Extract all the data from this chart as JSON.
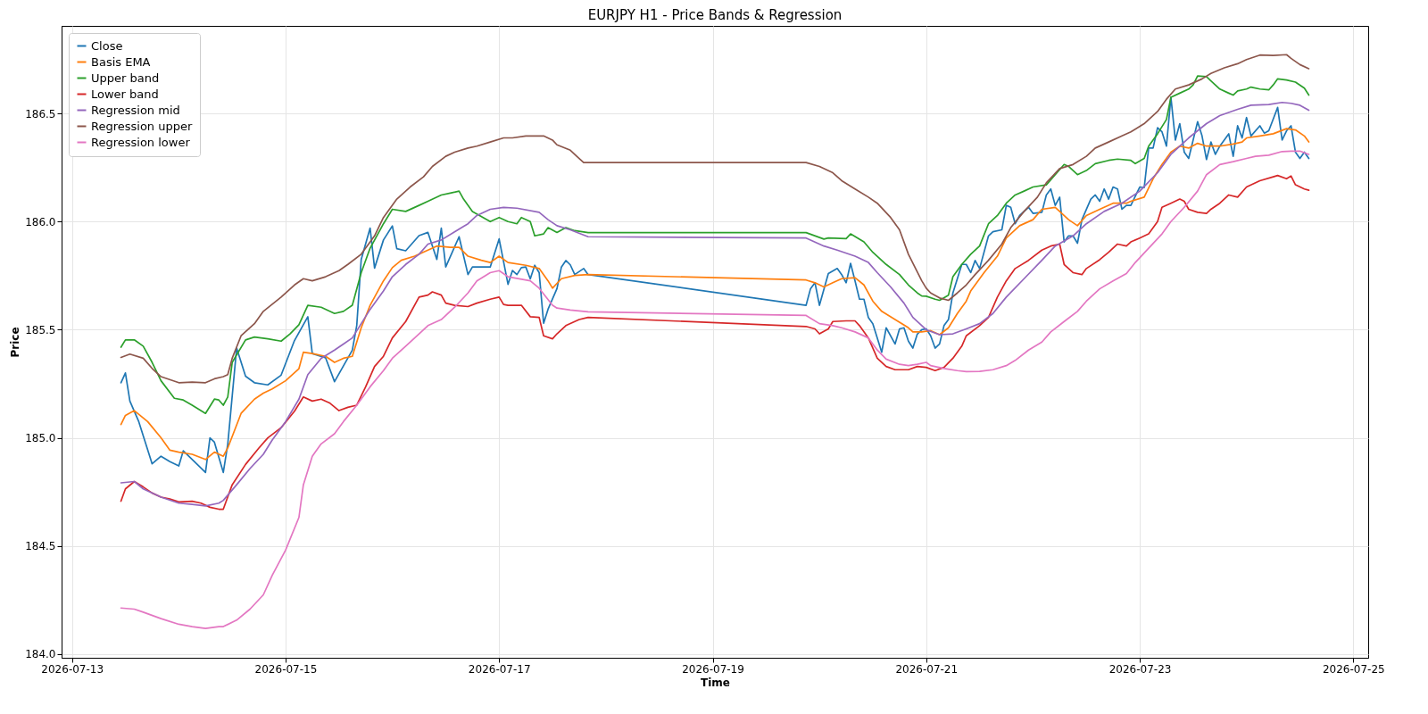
{
  "chart_data": {
    "type": "line",
    "title": "EURJPY H1 - Price Bands & Regression",
    "xlabel": "Time",
    "ylabel": "Price",
    "xlim": [
      "2026-07-12T21:39",
      "2026-07-25T03:21"
    ],
    "xticks": [
      "2026-07-13",
      "2026-07-15",
      "2026-07-17",
      "2026-07-19",
      "2026-07-21",
      "2026-07-23",
      "2026-07-25"
    ],
    "ylim": [
      183.983,
      186.905
    ],
    "yticks": [
      {
        "value": 184,
        "label": "184.0"
      },
      {
        "value": 184.5,
        "label": "184.5"
      },
      {
        "value": 185,
        "label": "185.0"
      },
      {
        "value": 185.5,
        "label": "185.5"
      },
      {
        "value": 186,
        "label": "186.0"
      },
      {
        "value": 186.5,
        "label": "186.5"
      }
    ],
    "grid": true,
    "legend": "top left",
    "series": [
      {
        "name": "Close",
        "color": "#1f77b4",
        "x": [
          "2026-07-13T11:00",
          "2026-07-13T12:00",
          "2026-07-13T13:00",
          "2026-07-13T15:00",
          "2026-07-13T16:00",
          "2026-07-13T18:00",
          "2026-07-13T20:00",
          "2026-07-13T22:00",
          "2026-07-14T00:00",
          "2026-07-14T01:00",
          "2026-07-14T04:00",
          "2026-07-14T06:00",
          "2026-07-14T07:00",
          "2026-07-14T08:00",
          "2026-07-14T10:00",
          "2026-07-14T11:00",
          "2026-07-14T13:00",
          "2026-07-14T15:00",
          "2026-07-14T17:00",
          "2026-07-14T20:00",
          "2026-07-14T23:00",
          "2026-07-15T02:00",
          "2026-07-15T05:00",
          "2026-07-15T06:00",
          "2026-07-15T09:00",
          "2026-07-15T11:00",
          "2026-07-15T15:00",
          "2026-07-15T16:00",
          "2026-07-15T17:00",
          "2026-07-15T19:00",
          "2026-07-15T20:00",
          "2026-07-15T22:00",
          "2026-07-16T00:00",
          "2026-07-16T01:00",
          "2026-07-16T03:00",
          "2026-07-16T06:00",
          "2026-07-16T08:00",
          "2026-07-16T10:00",
          "2026-07-16T11:00",
          "2026-07-16T12:00",
          "2026-07-16T15:00",
          "2026-07-16T17:00",
          "2026-07-16T18:00",
          "2026-07-16T22:00",
          "2026-07-17T00:00",
          "2026-07-17T02:00",
          "2026-07-17T03:00",
          "2026-07-17T04:00",
          "2026-07-17T05:00",
          "2026-07-17T06:00",
          "2026-07-17T07:00",
          "2026-07-17T08:00",
          "2026-07-17T09:00",
          "2026-07-17T10:00",
          "2026-07-17T11:00",
          "2026-07-17T13:00",
          "2026-07-17T14:00",
          "2026-07-17T15:00",
          "2026-07-17T16:00",
          "2026-07-17T17:00",
          "2026-07-17T19:00",
          "2026-07-17T20:00",
          "2026-07-19T21:00",
          "2026-07-19T22:00",
          "2026-07-19T23:00",
          "2026-07-20T00:00",
          "2026-07-20T02:00",
          "2026-07-20T04:00",
          "2026-07-20T05:00",
          "2026-07-20T06:00",
          "2026-07-20T07:00",
          "2026-07-20T08:00",
          "2026-07-20T09:00",
          "2026-07-20T10:00",
          "2026-07-20T11:00",
          "2026-07-20T12:00",
          "2026-07-20T14:00",
          "2026-07-20T15:00",
          "2026-07-20T17:00",
          "2026-07-20T18:00",
          "2026-07-20T19:00",
          "2026-07-20T20:00",
          "2026-07-20T21:00",
          "2026-07-20T22:00",
          "2026-07-20T23:00",
          "2026-07-21T00:00",
          "2026-07-21T01:00",
          "2026-07-21T02:00",
          "2026-07-21T03:00",
          "2026-07-21T04:00",
          "2026-07-21T05:00",
          "2026-07-21T06:00",
          "2026-07-21T08:00",
          "2026-07-21T09:00",
          "2026-07-21T10:00",
          "2026-07-21T11:00",
          "2026-07-21T12:00",
          "2026-07-21T14:00",
          "2026-07-21T15:00",
          "2026-07-21T17:00",
          "2026-07-21T18:00",
          "2026-07-21T19:00",
          "2026-07-21T20:00",
          "2026-07-21T21:00",
          "2026-07-21T23:00",
          "2026-07-22T00:00",
          "2026-07-22T02:00",
          "2026-07-22T03:00",
          "2026-07-22T04:00",
          "2026-07-22T05:00",
          "2026-07-22T06:00",
          "2026-07-22T07:00",
          "2026-07-22T08:00",
          "2026-07-22T09:00",
          "2026-07-22T10:00",
          "2026-07-22T11:00",
          "2026-07-22T13:00",
          "2026-07-22T14:00",
          "2026-07-22T15:00",
          "2026-07-22T16:00",
          "2026-07-22T17:00",
          "2026-07-22T18:00",
          "2026-07-22T19:00",
          "2026-07-22T20:00",
          "2026-07-22T21:00",
          "2026-07-22T22:00",
          "2026-07-23T00:00",
          "2026-07-23T01:00",
          "2026-07-23T02:00",
          "2026-07-23T03:00",
          "2026-07-23T04:00",
          "2026-07-23T05:00",
          "2026-07-23T06:00",
          "2026-07-23T07:00",
          "2026-07-23T08:00",
          "2026-07-23T09:00",
          "2026-07-23T10:00",
          "2026-07-23T11:00",
          "2026-07-23T13:00",
          "2026-07-23T14:00",
          "2026-07-23T15:00",
          "2026-07-23T16:00",
          "2026-07-23T17:00",
          "2026-07-23T18:00",
          "2026-07-23T20:00",
          "2026-07-23T21:00",
          "2026-07-23T22:00",
          "2026-07-23T23:00",
          "2026-07-24T00:00",
          "2026-07-24T01:00",
          "2026-07-24T03:00",
          "2026-07-24T04:00",
          "2026-07-24T05:00",
          "2026-07-24T07:00",
          "2026-07-24T08:00",
          "2026-07-24T09:00",
          "2026-07-24T10:00",
          "2026-07-24T11:00",
          "2026-07-24T12:00",
          "2026-07-24T13:00",
          "2026-07-24T14:00"
        ],
        "values": [
          185.255,
          185.3,
          185.17,
          185.075,
          185.01,
          184.88,
          184.915,
          184.89,
          184.87,
          184.94,
          184.88,
          184.84,
          185.0,
          184.98,
          184.84,
          184.97,
          185.415,
          185.285,
          185.255,
          185.245,
          185.29,
          185.45,
          185.56,
          185.39,
          185.37,
          185.26,
          185.405,
          185.52,
          185.825,
          185.97,
          185.785,
          185.915,
          185.98,
          185.875,
          185.865,
          185.935,
          185.95,
          185.825,
          185.97,
          185.79,
          185.93,
          185.755,
          185.79,
          185.79,
          185.92,
          185.71,
          185.774,
          185.755,
          185.787,
          185.79,
          185.735,
          185.798,
          185.764,
          185.53,
          185.595,
          185.69,
          185.79,
          185.82,
          185.8,
          185.755,
          185.783,
          185.755,
          185.613,
          185.69,
          185.717,
          185.613,
          185.76,
          185.783,
          185.755,
          185.717,
          185.807,
          185.726,
          185.641,
          185.641,
          185.556,
          185.528,
          185.396,
          185.509,
          185.434,
          185.504,
          185.509,
          185.447,
          185.415,
          185.48,
          185.5,
          185.504,
          185.472,
          185.415,
          185.434,
          185.519,
          185.547,
          185.67,
          185.802,
          185.802,
          185.764,
          185.82,
          185.783,
          185.934,
          185.953,
          185.962,
          186.075,
          186.066,
          185.99,
          186.028,
          186.066,
          186.038,
          186.043,
          186.123,
          186.151,
          186.075,
          186.113,
          185.906,
          185.934,
          185.934,
          185.9,
          186.009,
          186.104,
          186.123,
          186.094,
          186.151,
          186.104,
          186.16,
          186.151,
          186.057,
          186.075,
          186.075,
          186.16,
          186.157,
          186.34,
          186.34,
          186.434,
          186.415,
          186.349,
          186.575,
          186.377,
          186.453,
          186.321,
          186.292,
          186.462,
          186.396,
          186.287,
          186.368,
          186.311,
          186.349,
          186.406,
          186.302,
          186.443,
          186.387,
          186.481,
          186.396,
          186.443,
          186.409,
          186.42,
          186.528,
          186.377,
          186.42,
          186.443,
          186.321,
          186.292,
          186.321,
          186.292
        ]
      },
      {
        "name": "Basis EMA",
        "color": "#ff7f0e",
        "x": [
          "2026-07-13T11:00",
          "2026-07-13T12:00",
          "2026-07-13T14:00",
          "2026-07-13T17:00",
          "2026-07-13T20:00",
          "2026-07-13T22:00",
          "2026-07-14T00:00",
          "2026-07-14T03:00",
          "2026-07-14T06:00",
          "2026-07-14T08:00",
          "2026-07-14T10:00",
          "2026-07-14T11:00",
          "2026-07-14T14:00",
          "2026-07-14T17:00",
          "2026-07-14T19:00",
          "2026-07-14T21:00",
          "2026-07-15T00:00",
          "2026-07-15T03:00",
          "2026-07-15T04:00",
          "2026-07-15T06:00",
          "2026-07-15T09:00",
          "2026-07-15T11:00",
          "2026-07-15T13:00",
          "2026-07-15T15:00",
          "2026-07-15T17:00",
          "2026-07-15T19:00",
          "2026-07-15T22:00",
          "2026-07-16T00:00",
          "2026-07-16T02:00",
          "2026-07-16T05:00",
          "2026-07-16T08:00",
          "2026-07-16T10:00",
          "2026-07-16T13:00",
          "2026-07-16T15:00",
          "2026-07-16T17:00",
          "2026-07-16T20:00",
          "2026-07-16T22:00",
          "2026-07-17T00:00",
          "2026-07-17T02:00",
          "2026-07-17T06:00",
          "2026-07-17T09:00",
          "2026-07-17T11:00",
          "2026-07-17T12:00",
          "2026-07-17T14:00",
          "2026-07-17T17:00",
          "2026-07-17T20:00",
          "2026-07-19T21:00",
          "2026-07-19T23:00",
          "2026-07-20T01:00",
          "2026-07-20T03:00",
          "2026-07-20T05:00",
          "2026-07-20T08:00",
          "2026-07-20T10:00",
          "2026-07-20T12:00",
          "2026-07-20T14:00",
          "2026-07-20T17:00",
          "2026-07-20T20:00",
          "2026-07-20T21:00",
          "2026-07-20T23:00",
          "2026-07-21T01:00",
          "2026-07-21T03:00",
          "2026-07-21T05:00",
          "2026-07-21T07:00",
          "2026-07-21T09:00",
          "2026-07-21T10:00",
          "2026-07-21T13:00",
          "2026-07-21T16:00",
          "2026-07-21T18:00",
          "2026-07-21T21:00",
          "2026-07-22T00:00",
          "2026-07-22T02:00",
          "2026-07-22T05:00",
          "2026-07-22T06:00",
          "2026-07-22T08:00",
          "2026-07-22T10:00",
          "2026-07-22T12:00",
          "2026-07-22T15:00",
          "2026-07-22T18:00",
          "2026-07-22T21:00",
          "2026-07-22T22:00",
          "2026-07-23T01:00",
          "2026-07-23T03:00",
          "2026-07-23T05:00",
          "2026-07-23T07:00",
          "2026-07-23T09:00",
          "2026-07-23T11:00",
          "2026-07-23T13:00",
          "2026-07-23T15:00",
          "2026-07-23T18:00",
          "2026-07-23T21:00",
          "2026-07-23T23:00",
          "2026-07-24T00:00",
          "2026-07-24T03:00",
          "2026-07-24T06:00",
          "2026-07-24T09:00",
          "2026-07-24T11:00",
          "2026-07-24T13:00",
          "2026-07-24T14:00"
        ],
        "values": [
          185.062,
          185.104,
          185.126,
          185.075,
          185.0,
          184.943,
          184.934,
          184.924,
          184.9,
          184.934,
          184.915,
          184.953,
          185.113,
          185.179,
          185.207,
          185.226,
          185.264,
          185.32,
          185.396,
          185.39,
          185.377,
          185.349,
          185.368,
          185.377,
          185.509,
          185.613,
          185.726,
          185.787,
          185.821,
          185.84,
          185.868,
          185.887,
          185.881,
          185.881,
          185.84,
          185.821,
          185.811,
          185.84,
          185.811,
          185.798,
          185.783,
          185.726,
          185.692,
          185.736,
          185.751,
          185.755,
          185.73,
          185.717,
          185.698,
          185.717,
          185.736,
          185.741,
          185.707,
          185.632,
          185.585,
          185.547,
          185.509,
          185.49,
          185.49,
          185.496,
          185.477,
          185.509,
          185.575,
          185.632,
          185.679,
          185.764,
          185.84,
          185.924,
          185.981,
          186.009,
          186.057,
          186.066,
          186.047,
          186.009,
          185.981,
          186.028,
          186.057,
          186.085,
          186.085,
          186.094,
          186.113,
          186.198,
          186.264,
          186.321,
          186.349,
          186.34,
          186.362,
          186.349,
          186.349,
          186.359,
          186.368,
          186.387,
          186.396,
          186.406,
          186.43,
          186.424,
          186.396,
          186.368
        ]
      },
      {
        "name": "Upper band",
        "color": "#2ca02c",
        "x": [
          "2026-07-13T11:00",
          "2026-07-13T12:00",
          "2026-07-13T14:00",
          "2026-07-13T16:00",
          "2026-07-13T18:00",
          "2026-07-13T20:00",
          "2026-07-13T23:00",
          "2026-07-14T01:00",
          "2026-07-14T03:00",
          "2026-07-14T06:00",
          "2026-07-14T08:00",
          "2026-07-14T09:00",
          "2026-07-14T10:00",
          "2026-07-14T11:00",
          "2026-07-14T12:00",
          "2026-07-14T15:00",
          "2026-07-14T17:00",
          "2026-07-14T20:00",
          "2026-07-14T23:00",
          "2026-07-15T01:00",
          "2026-07-15T03:00",
          "2026-07-15T05:00",
          "2026-07-15T08:00",
          "2026-07-15T11:00",
          "2026-07-15T13:00",
          "2026-07-15T15:00",
          "2026-07-15T17:00",
          "2026-07-15T19:00",
          "2026-07-15T22:00",
          "2026-07-16T00:00",
          "2026-07-16T03:00",
          "2026-07-16T06:00",
          "2026-07-16T08:00",
          "2026-07-16T11:00",
          "2026-07-16T13:00",
          "2026-07-16T15:00",
          "2026-07-16T16:00",
          "2026-07-16T18:00",
          "2026-07-16T22:00",
          "2026-07-17T00:00",
          "2026-07-17T02:00",
          "2026-07-17T04:00",
          "2026-07-17T05:00",
          "2026-07-17T07:00",
          "2026-07-17T08:00",
          "2026-07-17T10:00",
          "2026-07-17T11:00",
          "2026-07-17T13:00",
          "2026-07-17T15:00",
          "2026-07-17T17:00",
          "2026-07-17T20:00",
          "2026-07-19T21:00",
          "2026-07-20T01:00",
          "2026-07-20T02:00",
          "2026-07-20T06:00",
          "2026-07-20T07:00",
          "2026-07-20T10:00",
          "2026-07-20T12:00",
          "2026-07-20T15:00",
          "2026-07-20T18:00",
          "2026-07-20T20:00",
          "2026-07-20T22:00",
          "2026-07-20T23:00",
          "2026-07-21T00:00",
          "2026-07-21T02:00",
          "2026-07-21T03:00",
          "2026-07-21T05:00",
          "2026-07-21T06:00",
          "2026-07-21T08:00",
          "2026-07-21T10:00",
          "2026-07-21T12:00",
          "2026-07-21T14:00",
          "2026-07-21T16:00",
          "2026-07-21T18:00",
          "2026-07-21T20:00",
          "2026-07-21T22:00",
          "2026-07-22T00:00",
          "2026-07-22T03:00",
          "2026-07-22T05:00",
          "2026-07-22T07:00",
          "2026-07-22T08:00",
          "2026-07-22T10:00",
          "2026-07-22T12:00",
          "2026-07-22T14:00",
          "2026-07-22T17:00",
          "2026-07-22T19:00",
          "2026-07-22T22:00",
          "2026-07-22T23:00",
          "2026-07-23T01:00",
          "2026-07-23T02:00",
          "2026-07-23T04:00",
          "2026-07-23T06:00",
          "2026-07-23T07:00",
          "2026-07-23T09:00",
          "2026-07-23T11:00",
          "2026-07-23T12:00",
          "2026-07-23T13:00",
          "2026-07-23T15:00",
          "2026-07-23T16:00",
          "2026-07-23T18:00",
          "2026-07-23T20:00",
          "2026-07-23T21:00",
          "2026-07-23T22:00",
          "2026-07-24T00:00",
          "2026-07-24T01:00",
          "2026-07-24T03:00",
          "2026-07-24T05:00",
          "2026-07-24T06:00",
          "2026-07-24T07:00",
          "2026-07-24T09:00",
          "2026-07-24T11:00",
          "2026-07-24T13:00",
          "2026-07-24T14:00"
        ],
        "values": [
          185.419,
          185.453,
          185.453,
          185.424,
          185.349,
          185.264,
          185.183,
          185.175,
          185.151,
          185.113,
          185.179,
          185.175,
          185.151,
          185.189,
          185.349,
          185.453,
          185.466,
          185.458,
          185.447,
          185.481,
          185.523,
          185.613,
          185.604,
          185.575,
          185.585,
          185.613,
          185.764,
          185.877,
          185.99,
          186.057,
          186.047,
          186.075,
          186.094,
          186.123,
          186.132,
          186.141,
          186.104,
          186.047,
          186.0,
          186.019,
          186.0,
          185.99,
          186.019,
          186.0,
          185.934,
          185.943,
          185.972,
          185.95,
          185.972,
          185.958,
          185.949,
          185.949,
          185.919,
          185.924,
          185.921,
          185.943,
          185.906,
          185.858,
          185.802,
          185.755,
          185.707,
          185.67,
          185.656,
          185.655,
          185.641,
          185.636,
          185.66,
          185.745,
          185.802,
          185.849,
          185.887,
          185.99,
          186.028,
          186.085,
          186.123,
          186.141,
          186.16,
          186.17,
          186.217,
          186.264,
          186.255,
          186.217,
          186.236,
          186.268,
          186.283,
          186.289,
          186.283,
          186.268,
          186.292,
          186.349,
          186.406,
          186.472,
          186.575,
          186.594,
          186.613,
          186.632,
          186.673,
          186.67,
          186.651,
          186.613,
          186.594,
          186.585,
          186.604,
          186.613,
          186.622,
          186.613,
          186.609,
          186.632,
          186.66,
          186.655,
          186.645,
          186.617,
          186.585
        ]
      },
      {
        "name": "Lower band",
        "color": "#d62728",
        "x": [
          "2026-07-13T11:00",
          "2026-07-13T12:00",
          "2026-07-13T14:00",
          "2026-07-13T16:00",
          "2026-07-13T18:00",
          "2026-07-13T20:00",
          "2026-07-13T22:00",
          "2026-07-14T00:00",
          "2026-07-14T03:00",
          "2026-07-14T05:00",
          "2026-07-14T07:00",
          "2026-07-14T09:00",
          "2026-07-14T10:00",
          "2026-07-14T12:00",
          "2026-07-14T15:00",
          "2026-07-14T18:00",
          "2026-07-14T20:00",
          "2026-07-14T23:00",
          "2026-07-15T02:00",
          "2026-07-15T04:00",
          "2026-07-15T06:00",
          "2026-07-15T08:00",
          "2026-07-15T10:00",
          "2026-07-15T12:00",
          "2026-07-15T14:00",
          "2026-07-15T16:00",
          "2026-07-15T18:00",
          "2026-07-15T20:00",
          "2026-07-15T22:00",
          "2026-07-16T00:00",
          "2026-07-16T03:00",
          "2026-07-16T06:00",
          "2026-07-16T08:00",
          "2026-07-16T09:00",
          "2026-07-16T11:00",
          "2026-07-16T12:00",
          "2026-07-16T14:00",
          "2026-07-16T17:00",
          "2026-07-16T19:00",
          "2026-07-16T22:00",
          "2026-07-17T00:00",
          "2026-07-17T01:00",
          "2026-07-17T02:00",
          "2026-07-17T05:00",
          "2026-07-17T07:00",
          "2026-07-17T09:00",
          "2026-07-17T10:00",
          "2026-07-17T12:00",
          "2026-07-17T13:00",
          "2026-07-17T15:00",
          "2026-07-17T18:00",
          "2026-07-17T20:00",
          "2026-07-19T21:00",
          "2026-07-19T23:00",
          "2026-07-20T00:00",
          "2026-07-20T02:00",
          "2026-07-20T03:00",
          "2026-07-20T06:00",
          "2026-07-20T08:00",
          "2026-07-20T09:00",
          "2026-07-20T11:00",
          "2026-07-20T13:00",
          "2026-07-20T15:00",
          "2026-07-20T17:00",
          "2026-07-20T20:00",
          "2026-07-20T22:00",
          "2026-07-21T00:00",
          "2026-07-21T02:00",
          "2026-07-21T04:00",
          "2026-07-21T06:00",
          "2026-07-21T08:00",
          "2026-07-21T09:00",
          "2026-07-21T12:00",
          "2026-07-21T14:00",
          "2026-07-21T16:00",
          "2026-07-21T18:00",
          "2026-07-21T20:00",
          "2026-07-21T23:00",
          "2026-07-22T02:00",
          "2026-07-22T04:00",
          "2026-07-22T06:00",
          "2026-07-22T07:00",
          "2026-07-22T09:00",
          "2026-07-22T11:00",
          "2026-07-22T12:00",
          "2026-07-22T15:00",
          "2026-07-22T17:00",
          "2026-07-22T19:00",
          "2026-07-22T21:00",
          "2026-07-22T22:00",
          "2026-07-23T00:00",
          "2026-07-23T02:00",
          "2026-07-23T04:00",
          "2026-07-23T05:00",
          "2026-07-23T07:00",
          "2026-07-23T09:00",
          "2026-07-23T10:00",
          "2026-07-23T11:00",
          "2026-07-23T13:00",
          "2026-07-23T15:00",
          "2026-07-23T16:00",
          "2026-07-23T18:00",
          "2026-07-23T20:00",
          "2026-07-23T22:00",
          "2026-07-24T00:00",
          "2026-07-24T03:00",
          "2026-07-24T06:00",
          "2026-07-24T07:00",
          "2026-07-24T09:00",
          "2026-07-24T10:00",
          "2026-07-24T11:00",
          "2026-07-24T13:00",
          "2026-07-24T14:00"
        ],
        "values": [
          184.707,
          184.764,
          184.798,
          184.773,
          184.745,
          184.726,
          184.717,
          184.704,
          184.707,
          184.698,
          184.679,
          184.67,
          184.67,
          184.783,
          184.877,
          184.953,
          185.0,
          185.047,
          185.123,
          185.189,
          185.17,
          185.179,
          185.16,
          185.126,
          185.141,
          185.151,
          185.236,
          185.33,
          185.377,
          185.462,
          185.538,
          185.651,
          185.66,
          185.675,
          185.66,
          185.623,
          185.613,
          185.607,
          185.623,
          185.641,
          185.651,
          185.617,
          185.613,
          185.613,
          185.56,
          185.557,
          185.472,
          185.458,
          185.481,
          185.519,
          185.547,
          185.557,
          185.515,
          185.504,
          185.481,
          185.504,
          185.538,
          185.541,
          185.541,
          185.519,
          185.462,
          185.368,
          185.33,
          185.315,
          185.315,
          185.33,
          185.326,
          185.311,
          185.326,
          185.368,
          185.424,
          185.472,
          185.519,
          185.557,
          185.651,
          185.726,
          185.783,
          185.821,
          185.868,
          185.887,
          185.896,
          185.802,
          185.764,
          185.755,
          185.783,
          185.824,
          185.858,
          185.896,
          185.887,
          185.906,
          185.924,
          185.943,
          186.0,
          186.066,
          186.085,
          186.104,
          186.094,
          186.057,
          186.043,
          186.038,
          186.057,
          186.085,
          186.123,
          186.113,
          186.16,
          186.189,
          186.207,
          186.213,
          186.198,
          186.211,
          186.17,
          186.151,
          186.145
        ]
      },
      {
        "name": "Regression mid",
        "color": "#9467bd",
        "x": [
          "2026-07-13T11:00",
          "2026-07-13T14:00",
          "2026-07-13T16:00",
          "2026-07-13T20:00",
          "2026-07-14T00:00",
          "2026-07-14T03:00",
          "2026-07-14T06:00",
          "2026-07-14T09:00",
          "2026-07-14T10:00",
          "2026-07-14T13:00",
          "2026-07-14T16:00",
          "2026-07-14T19:00",
          "2026-07-14T21:00",
          "2026-07-15T00:00",
          "2026-07-15T03:00",
          "2026-07-15T05:00",
          "2026-07-15T08:00",
          "2026-07-15T11:00",
          "2026-07-15T13:00",
          "2026-07-15T15:00",
          "2026-07-15T17:00",
          "2026-07-15T19:00",
          "2026-07-15T22:00",
          "2026-07-16T00:00",
          "2026-07-16T03:00",
          "2026-07-16T06:00",
          "2026-07-16T08:00",
          "2026-07-16T11:00",
          "2026-07-16T14:00",
          "2026-07-16T17:00",
          "2026-07-16T19:00",
          "2026-07-16T22:00",
          "2026-07-17T01:00",
          "2026-07-17T04:00",
          "2026-07-17T09:00",
          "2026-07-17T11:00",
          "2026-07-17T13:00",
          "2026-07-17T16:00",
          "2026-07-17T20:00",
          "2026-07-19T21:00",
          "2026-07-20T01:00",
          "2026-07-20T04:00",
          "2026-07-20T08:00",
          "2026-07-20T11:00",
          "2026-07-20T13:00",
          "2026-07-20T16:00",
          "2026-07-20T19:00",
          "2026-07-20T21:00",
          "2026-07-21T00:00",
          "2026-07-21T03:00",
          "2026-07-21T06:00",
          "2026-07-21T09:00",
          "2026-07-21T12:00",
          "2026-07-21T15:00",
          "2026-07-21T18:00",
          "2026-07-21T22:00",
          "2026-07-22T02:00",
          "2026-07-22T05:00",
          "2026-07-22T09:00",
          "2026-07-22T12:00",
          "2026-07-22T16:00",
          "2026-07-22T20:00",
          "2026-07-23T00:00",
          "2026-07-23T04:00",
          "2026-07-23T07:00",
          "2026-07-23T11:00",
          "2026-07-23T15:00",
          "2026-07-23T18:00",
          "2026-07-23T22:00",
          "2026-07-24T01:00",
          "2026-07-24T05:00",
          "2026-07-24T08:00",
          "2026-07-24T10:00",
          "2026-07-24T12:00",
          "2026-07-24T14:00"
        ],
        "values": [
          184.792,
          184.798,
          184.764,
          184.726,
          184.698,
          184.692,
          184.685,
          184.698,
          184.711,
          184.783,
          184.858,
          184.924,
          184.99,
          185.075,
          185.179,
          185.292,
          185.368,
          185.406,
          185.434,
          185.462,
          185.528,
          185.594,
          185.679,
          185.745,
          185.802,
          185.849,
          185.896,
          185.915,
          185.953,
          185.99,
          186.028,
          186.057,
          186.066,
          186.062,
          186.043,
          186.009,
          185.981,
          185.962,
          185.93,
          185.924,
          185.887,
          185.868,
          185.84,
          185.811,
          185.764,
          185.698,
          185.623,
          185.557,
          185.5,
          185.477,
          185.481,
          185.504,
          185.528,
          185.575,
          185.651,
          185.736,
          185.821,
          185.887,
          185.934,
          185.99,
          186.047,
          186.085,
          186.141,
          186.226,
          186.311,
          186.387,
          186.453,
          186.49,
          186.519,
          186.538,
          186.541,
          186.551,
          186.547,
          186.538,
          186.515
        ]
      },
      {
        "name": "Regression upper",
        "color": "#8c564b",
        "x": [
          "2026-07-13T11:00",
          "2026-07-13T13:00",
          "2026-07-13T16:00",
          "2026-07-13T18:00",
          "2026-07-13T20:00",
          "2026-07-14T00:00",
          "2026-07-14T03:00",
          "2026-07-14T06:00",
          "2026-07-14T08:00",
          "2026-07-14T10:00",
          "2026-07-14T11:00",
          "2026-07-14T12:00",
          "2026-07-14T14:00",
          "2026-07-14T17:00",
          "2026-07-14T19:00",
          "2026-07-14T23:00",
          "2026-07-15T02:00",
          "2026-07-15T04:00",
          "2026-07-15T06:00",
          "2026-07-15T09:00",
          "2026-07-15T12:00",
          "2026-07-15T14:00",
          "2026-07-15T17:00",
          "2026-07-15T20:00",
          "2026-07-15T22:00",
          "2026-07-16T01:00",
          "2026-07-16T04:00",
          "2026-07-16T07:00",
          "2026-07-16T09:00",
          "2026-07-16T12:00",
          "2026-07-16T14:00",
          "2026-07-16T17:00",
          "2026-07-16T19:00",
          "2026-07-16T22:00",
          "2026-07-17T01:00",
          "2026-07-17T03:00",
          "2026-07-17T06:00",
          "2026-07-17T10:00",
          "2026-07-17T12:00",
          "2026-07-17T13:00",
          "2026-07-17T16:00",
          "2026-07-17T18:00",
          "2026-07-17T19:00",
          "2026-07-17T20:00",
          "2026-07-19T21:00",
          "2026-07-20T00:00",
          "2026-07-20T03:00",
          "2026-07-20T05:00",
          "2026-07-20T08:00",
          "2026-07-20T11:00",
          "2026-07-20T13:00",
          "2026-07-20T16:00",
          "2026-07-20T18:00",
          "2026-07-20T20:00",
          "2026-07-20T23:00",
          "2026-07-21T00:00",
          "2026-07-21T01:00",
          "2026-07-21T03:00",
          "2026-07-21T05:00",
          "2026-07-21T07:00",
          "2026-07-21T09:00",
          "2026-07-21T11:00",
          "2026-07-21T14:00",
          "2026-07-21T17:00",
          "2026-07-21T19:00",
          "2026-07-21T22:00",
          "2026-07-22T01:00",
          "2026-07-22T03:00",
          "2026-07-22T06:00",
          "2026-07-22T09:00",
          "2026-07-22T12:00",
          "2026-07-22T14:00",
          "2026-07-22T17:00",
          "2026-07-22T20:00",
          "2026-07-22T22:00",
          "2026-07-23T01:00",
          "2026-07-23T04:00",
          "2026-07-23T06:00",
          "2026-07-23T08:00",
          "2026-07-23T11:00",
          "2026-07-23T14:00",
          "2026-07-23T16:00",
          "2026-07-23T19:00",
          "2026-07-23T22:00",
          "2026-07-24T00:00",
          "2026-07-24T03:00",
          "2026-07-24T06:00",
          "2026-07-24T09:00",
          "2026-07-24T10:00",
          "2026-07-24T12:00",
          "2026-07-24T14:00"
        ],
        "values": [
          185.372,
          185.387,
          185.368,
          185.321,
          185.283,
          185.255,
          185.258,
          185.255,
          185.273,
          185.283,
          185.292,
          185.368,
          185.472,
          185.528,
          185.585,
          185.651,
          185.707,
          185.736,
          185.726,
          185.745,
          185.773,
          185.802,
          185.849,
          185.934,
          186.019,
          186.104,
          186.16,
          186.207,
          186.255,
          186.302,
          186.321,
          186.34,
          186.349,
          186.368,
          186.387,
          186.387,
          186.396,
          186.396,
          186.377,
          186.355,
          186.33,
          186.292,
          186.273,
          186.273,
          186.273,
          186.255,
          186.226,
          186.189,
          186.151,
          186.113,
          186.085,
          186.019,
          185.962,
          185.849,
          185.726,
          185.692,
          185.67,
          185.647,
          185.636,
          185.67,
          185.707,
          185.755,
          185.821,
          185.896,
          185.972,
          186.047,
          186.113,
          186.179,
          186.245,
          186.264,
          186.302,
          186.34,
          186.368,
          186.396,
          186.415,
          186.453,
          186.509,
          186.566,
          186.613,
          186.632,
          186.66,
          186.685,
          186.711,
          186.73,
          186.749,
          186.77,
          186.768,
          186.772,
          186.755,
          186.726,
          186.707
        ]
      },
      {
        "name": "Regression lower",
        "color": "#e377c2",
        "x": [
          "2026-07-13T11:00",
          "2026-07-13T14:00",
          "2026-07-13T16:00",
          "2026-07-13T20:00",
          "2026-07-14T00:00",
          "2026-07-14T03:00",
          "2026-07-14T06:00",
          "2026-07-14T09:00",
          "2026-07-14T10:00",
          "2026-07-14T13:00",
          "2026-07-14T16:00",
          "2026-07-14T19:00",
          "2026-07-14T21:00",
          "2026-07-15T00:00",
          "2026-07-15T03:00",
          "2026-07-15T04:00",
          "2026-07-15T06:00",
          "2026-07-15T08:00",
          "2026-07-15T11:00",
          "2026-07-15T13:00",
          "2026-07-15T16:00",
          "2026-07-15T19:00",
          "2026-07-15T22:00",
          "2026-07-16T00:00",
          "2026-07-16T03:00",
          "2026-07-16T06:00",
          "2026-07-16T08:00",
          "2026-07-16T11:00",
          "2026-07-16T14:00",
          "2026-07-16T17:00",
          "2026-07-16T19:00",
          "2026-07-16T22:00",
          "2026-07-17T00:00",
          "2026-07-17T02:00",
          "2026-07-17T07:00",
          "2026-07-17T09:00",
          "2026-07-17T12:00",
          "2026-07-17T13:00",
          "2026-07-17T16:00",
          "2026-07-17T20:00",
          "2026-07-19T21:00",
          "2026-07-20T00:00",
          "2026-07-20T03:00",
          "2026-07-20T05:00",
          "2026-07-20T08:00",
          "2026-07-20T11:00",
          "2026-07-20T13:00",
          "2026-07-20T15:00",
          "2026-07-20T18:00",
          "2026-07-20T20:00",
          "2026-07-20T22:00",
          "2026-07-21T00:00",
          "2026-07-21T01:00",
          "2026-07-21T04:00",
          "2026-07-21T07:00",
          "2026-07-21T09:00",
          "2026-07-21T12:00",
          "2026-07-21T15:00",
          "2026-07-21T18:00",
          "2026-07-21T20:00",
          "2026-07-21T23:00",
          "2026-07-22T02:00",
          "2026-07-22T04:00",
          "2026-07-22T07:00",
          "2026-07-22T10:00",
          "2026-07-22T12:00",
          "2026-07-22T15:00",
          "2026-07-22T18:00",
          "2026-07-22T21:00",
          "2026-07-22T23:00",
          "2026-07-23T02:00",
          "2026-07-23T05:00",
          "2026-07-23T07:00",
          "2026-07-23T10:00",
          "2026-07-23T13:00",
          "2026-07-23T15:00",
          "2026-07-23T18:00",
          "2026-07-23T21:00",
          "2026-07-24T00:00",
          "2026-07-24T02:00",
          "2026-07-24T05:00",
          "2026-07-24T08:00",
          "2026-07-24T10:00",
          "2026-07-24T12:00",
          "2026-07-24T14:00"
        ],
        "values": [
          184.213,
          184.208,
          184.194,
          184.164,
          184.138,
          184.127,
          184.119,
          184.127,
          184.127,
          184.157,
          184.208,
          184.274,
          184.364,
          184.481,
          184.632,
          184.783,
          184.915,
          184.972,
          185.019,
          185.075,
          185.151,
          185.236,
          185.311,
          185.368,
          185.424,
          185.481,
          185.519,
          185.547,
          185.604,
          185.67,
          185.726,
          185.764,
          185.773,
          185.745,
          185.726,
          185.692,
          185.613,
          185.6,
          185.591,
          185.583,
          185.566,
          185.528,
          185.519,
          185.509,
          185.49,
          185.462,
          185.406,
          185.364,
          185.34,
          185.334,
          185.34,
          185.349,
          185.334,
          185.321,
          185.311,
          185.306,
          185.307,
          185.315,
          185.334,
          185.358,
          185.406,
          185.443,
          185.49,
          185.538,
          185.585,
          185.632,
          185.689,
          185.726,
          185.76,
          185.811,
          185.877,
          185.943,
          186.0,
          186.066,
          186.141,
          186.217,
          186.264,
          186.277,
          186.292,
          186.302,
          186.307,
          186.324,
          186.326,
          186.326,
          186.311
        ]
      }
    ]
  }
}
